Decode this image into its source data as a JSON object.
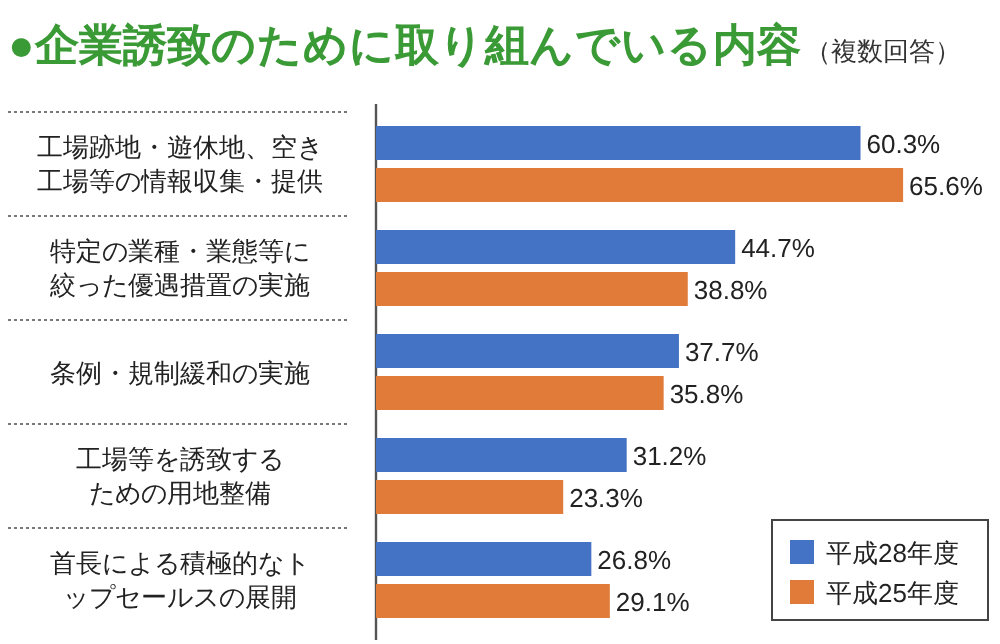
{
  "chart_data": {
    "type": "bar",
    "orientation": "horizontal",
    "title": "●企業誘致のために取り組んでいる内容",
    "subtitle": "（複数回答）",
    "categories": [
      "工場跡地・遊休地、空き工場等の情報収集・提供",
      "特定の業種・業態等に絞った優遇措置の実施",
      "条例・規制緩和の実施",
      "工場等を誘致するための用地整備",
      "首長による積極的なトップセールスの展開"
    ],
    "series": [
      {
        "name": "平成28年度",
        "color": "#4472c4",
        "values": [
          60.3,
          44.7,
          37.7,
          31.2,
          26.8
        ],
        "value_labels": [
          "60.3%",
          "44.7%",
          "37.7%",
          "31.2%",
          "26.8%"
        ]
      },
      {
        "name": "平成25年度",
        "color": "#e07b39",
        "values": [
          65.6,
          38.8,
          35.8,
          23.3,
          29.1
        ],
        "value_labels": [
          "65.6%",
          "38.8%",
          "35.8%",
          "23.3%",
          "29.1%"
        ]
      }
    ],
    "legend": "bottom right"
  }
}
